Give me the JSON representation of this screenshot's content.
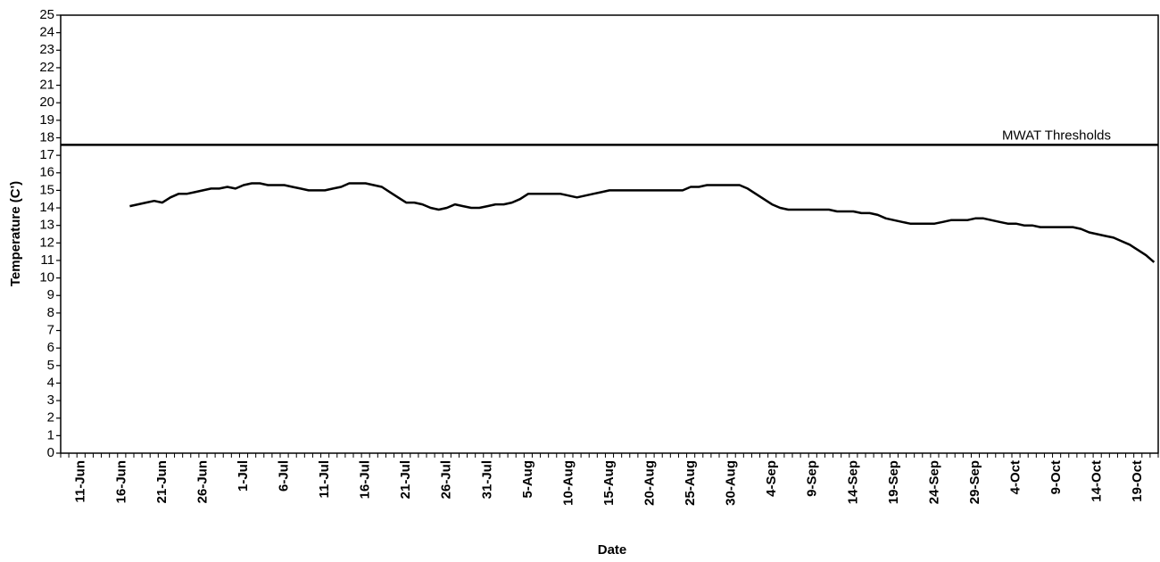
{
  "chart_data": {
    "type": "line",
    "x_label": "Date",
    "y_label": "Temperature (C')",
    "categories": [
      null,
      null,
      "11-Jun",
      null,
      null,
      null,
      null,
      "16-Jun",
      null,
      null,
      null,
      null,
      "21-Jun",
      null,
      null,
      null,
      null,
      "26-Jun",
      null,
      null,
      null,
      null,
      "1-Jul",
      null,
      null,
      null,
      null,
      "6-Jul",
      null,
      null,
      null,
      null,
      "11-Jul",
      null,
      null,
      null,
      null,
      "16-Jul",
      null,
      null,
      null,
      null,
      "21-Jul",
      null,
      null,
      null,
      null,
      "26-Jul",
      null,
      null,
      null,
      null,
      "31-Jul",
      null,
      null,
      null,
      null,
      "5-Aug",
      null,
      null,
      null,
      null,
      "10-Aug",
      null,
      null,
      null,
      null,
      "15-Aug",
      null,
      null,
      null,
      null,
      "20-Aug",
      null,
      null,
      null,
      null,
      "25-Aug",
      null,
      null,
      null,
      null,
      "30-Aug",
      null,
      null,
      null,
      null,
      "4-Sep",
      null,
      null,
      null,
      null,
      "9-Sep",
      null,
      null,
      null,
      null,
      "14-Sep",
      null,
      null,
      null,
      null,
      "19-Sep",
      null,
      null,
      null,
      null,
      "24-Sep",
      null,
      null,
      null,
      null,
      "29-Sep",
      null,
      null,
      null,
      null,
      "4-Oct",
      null,
      null,
      null,
      null,
      "9-Oct",
      null,
      null,
      null,
      null,
      "14-Oct",
      null,
      null,
      null,
      null,
      "19-Oct",
      null,
      null
    ],
    "values": [
      null,
      null,
      null,
      null,
      null,
      null,
      null,
      null,
      14.1,
      14.2,
      14.3,
      14.4,
      14.3,
      14.6,
      14.8,
      14.8,
      14.9,
      15.0,
      15.1,
      15.1,
      15.2,
      15.1,
      15.3,
      15.4,
      15.4,
      15.3,
      15.3,
      15.3,
      15.2,
      15.1,
      15.0,
      15.0,
      15.0,
      15.1,
      15.2,
      15.4,
      15.4,
      15.4,
      15.3,
      15.2,
      14.9,
      14.6,
      14.3,
      14.3,
      14.2,
      14.0,
      13.9,
      14.0,
      14.2,
      14.1,
      14.0,
      14.0,
      14.1,
      14.2,
      14.2,
      14.3,
      14.5,
      14.8,
      14.8,
      14.8,
      14.8,
      14.8,
      14.7,
      14.6,
      14.7,
      14.8,
      14.9,
      15.0,
      15.0,
      15.0,
      15.0,
      15.0,
      15.0,
      15.0,
      15.0,
      15.0,
      15.0,
      15.2,
      15.2,
      15.3,
      15.3,
      15.3,
      15.3,
      15.3,
      15.1,
      14.8,
      14.5,
      14.2,
      14.0,
      13.9,
      13.9,
      13.9,
      13.9,
      13.9,
      13.9,
      13.8,
      13.8,
      13.8,
      13.7,
      13.7,
      13.6,
      13.4,
      13.3,
      13.2,
      13.1,
      13.1,
      13.1,
      13.1,
      13.2,
      13.3,
      13.3,
      13.3,
      13.4,
      13.4,
      13.3,
      13.2,
      13.1,
      13.1,
      13.0,
      13.0,
      12.9,
      12.9,
      12.9,
      12.9,
      12.9,
      12.8,
      12.6,
      12.5,
      12.4,
      12.3,
      12.1,
      11.9,
      11.6,
      11.3,
      10.9
    ],
    "color": "#000000",
    "threshold": {
      "value": 17.6,
      "label": "MWAT Thresholds"
    },
    "ylim": [
      0,
      25
    ],
    "yticks": [
      0,
      1,
      2,
      3,
      4,
      5,
      6,
      7,
      8,
      9,
      10,
      11,
      12,
      13,
      14,
      15,
      16,
      17,
      18,
      19,
      20,
      21,
      22,
      23,
      24,
      25
    ],
    "grid": false
  }
}
